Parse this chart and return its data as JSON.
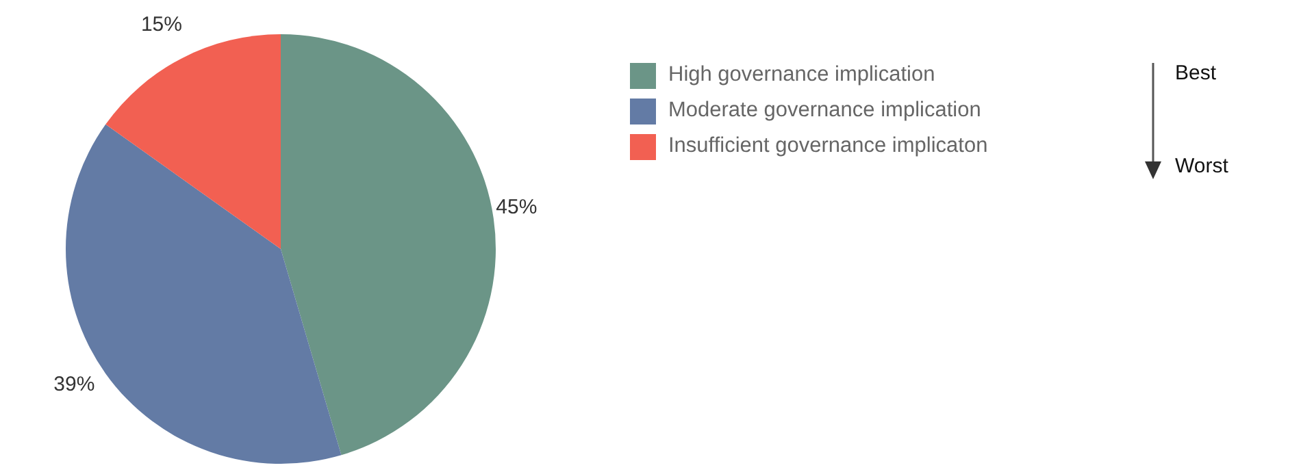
{
  "chart_data": {
    "type": "pie",
    "categories": [
      "High governance implication",
      "Moderate governance implication",
      "Insufficient governance implicaton"
    ],
    "values": [
      45,
      39,
      15
    ],
    "value_labels": [
      "45%",
      "39%",
      "15%"
    ],
    "colors": [
      "#6b9587",
      "#637ba5",
      "#f26052"
    ],
    "legend": "top right",
    "annotations": [
      "Best",
      "Worst"
    ]
  }
}
